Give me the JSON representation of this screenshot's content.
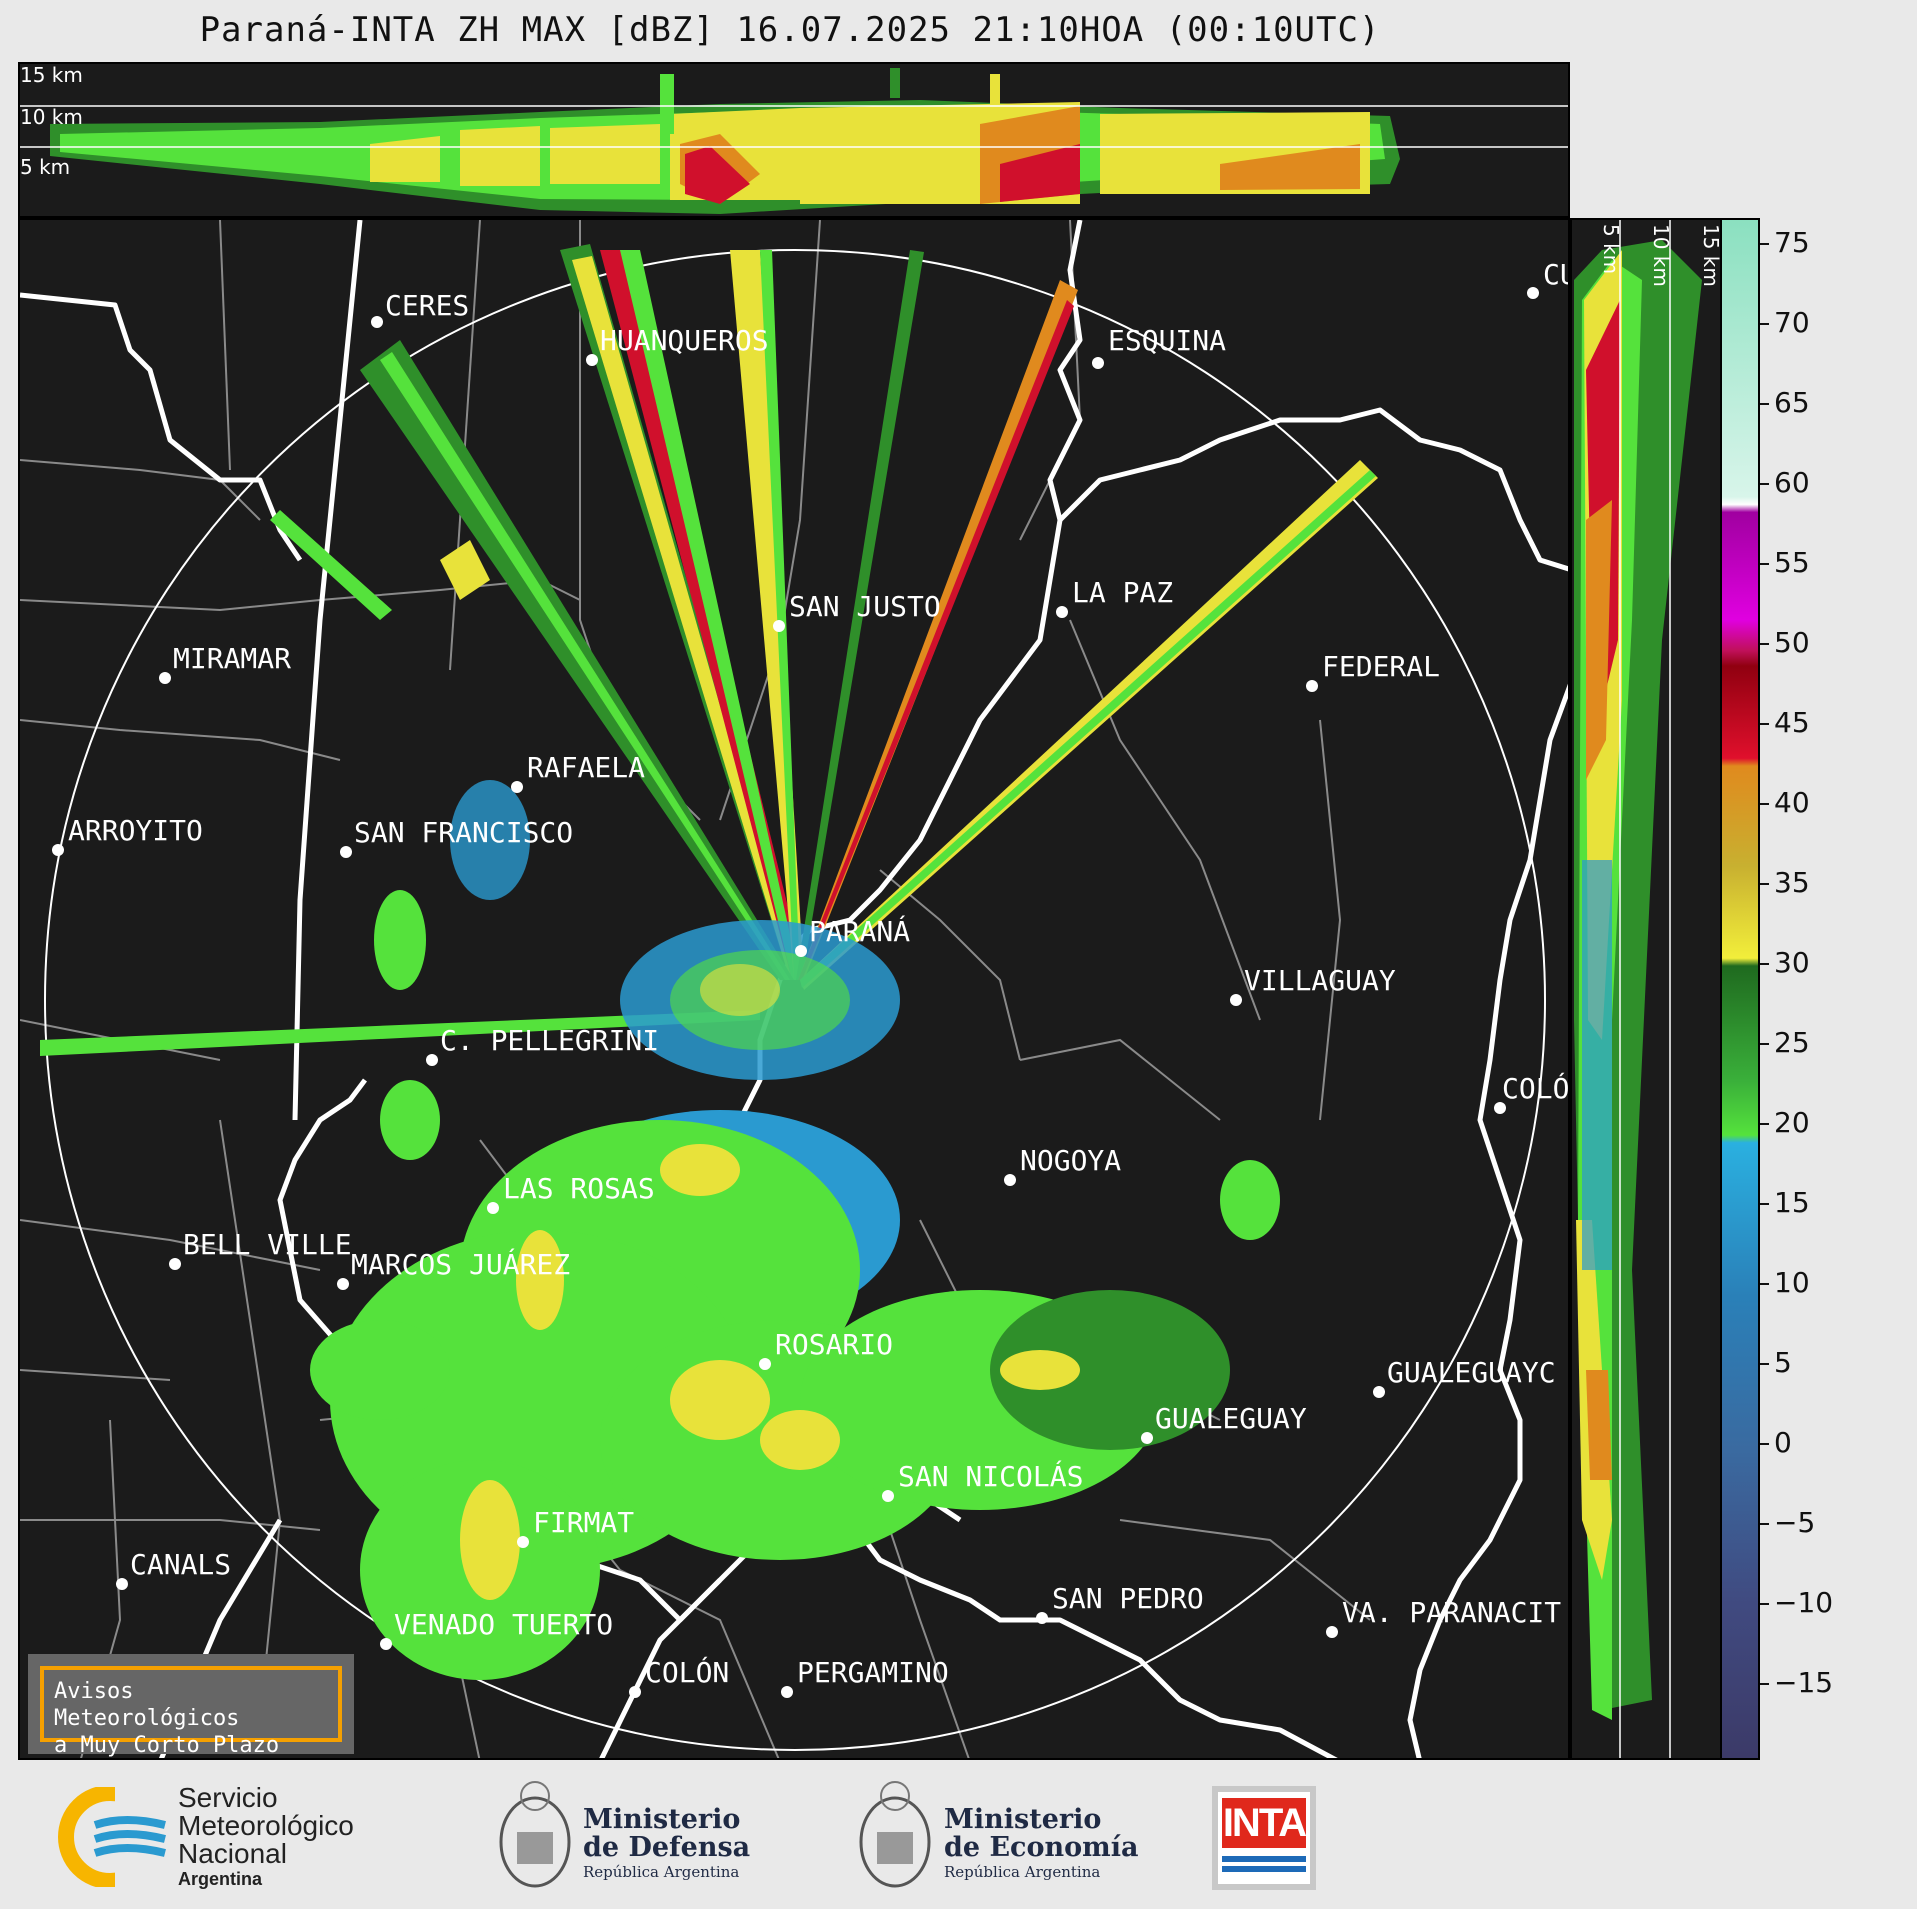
{
  "title": "Paraná-INTA ZH MAX [dBZ] 16.07.2025 21:10HOA (00:10UTC)",
  "top_section": {
    "altitude_labels": [
      "15 km",
      "10 km",
      "5 km"
    ]
  },
  "right_section": {
    "altitude_labels": [
      "5 km",
      "10 km",
      "15 km"
    ]
  },
  "colorbar": {
    "ticks": [
      "75",
      "70",
      "65",
      "60",
      "55",
      "50",
      "45",
      "40",
      "35",
      "30",
      "25",
      "20",
      "15",
      "10",
      "5",
      "0",
      "−5",
      "−10",
      "−15"
    ],
    "range": [
      -20,
      77
    ]
  },
  "cities": [
    {
      "name": "CERES"
    },
    {
      "name": "HUANQUEROS"
    },
    {
      "name": "ESQUINA"
    },
    {
      "name": "CU"
    },
    {
      "name": "SAN JUSTO"
    },
    {
      "name": "LA PAZ"
    },
    {
      "name": "MIRAMAR"
    },
    {
      "name": "FEDERAL"
    },
    {
      "name": "RAFAELA"
    },
    {
      "name": "ARROYITO"
    },
    {
      "name": "SAN FRANCISCO"
    },
    {
      "name": "PARANÁ"
    },
    {
      "name": "VILLAGUAY"
    },
    {
      "name": "C. PELLEGRINI"
    },
    {
      "name": "COLÓ"
    },
    {
      "name": "NOGOYA"
    },
    {
      "name": "LAS ROSAS"
    },
    {
      "name": "BELL VILLE"
    },
    {
      "name": "MARCOS JUÁREZ"
    },
    {
      "name": "ROSARIO"
    },
    {
      "name": "GUALEGUAYC"
    },
    {
      "name": "GUALEGUAY"
    },
    {
      "name": "SAN NICOLÁS"
    },
    {
      "name": "FIRMAT"
    },
    {
      "name": "CANALS"
    },
    {
      "name": "SAN PEDRO"
    },
    {
      "name": "VENADO TUERTO"
    },
    {
      "name": "VA. PARANACIT"
    },
    {
      "name": "COLÓN"
    },
    {
      "name": "PERGAMINO"
    }
  ],
  "notice": {
    "line1": "Avisos Meteorológicos",
    "line2": "a Muy Corto Plazo"
  },
  "footer": {
    "smn": {
      "line1": "Servicio",
      "line2": "Meteorológico",
      "line3": "Nacional",
      "line4": "Argentina"
    },
    "defensa": {
      "line1": "Ministerio",
      "line2": "de Defensa",
      "line3": "República Argentina"
    },
    "economia": {
      "line1": "Ministerio",
      "line2": "de Economía",
      "line3": "República Argentina"
    },
    "inta": {
      "label": "INTA"
    }
  },
  "colors": {
    "background": "#1b1b1b",
    "light_green": "#55e23c",
    "dark_green": "#2f8f2a",
    "yellow": "#e8e23a",
    "orange": "#e08a1e",
    "red": "#d0102c",
    "blue": "#2a9ad0",
    "border_white": "#ffffff",
    "border_gray": "#8a8a8a",
    "notice_border": "#f5a000"
  }
}
